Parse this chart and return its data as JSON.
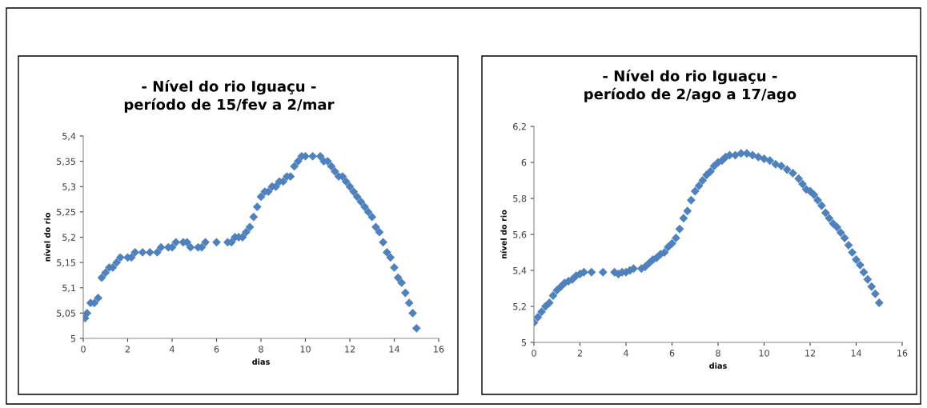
{
  "chart_data": [
    {
      "type": "scatter",
      "title": "- Nível do rio Iguaçu -\nperíodo de 15/fev a 2/mar",
      "xlabel": "dias",
      "ylabel": "nível do rio",
      "marker": "diamond",
      "grid": false,
      "legend": false,
      "xlim": [
        0,
        16
      ],
      "xticks": [
        0,
        2,
        4,
        6,
        8,
        10,
        12,
        14,
        16
      ],
      "ylim": [
        5,
        5.4
      ],
      "yticks": [
        {
          "value": 5,
          "label": "5"
        },
        {
          "value": 5.05,
          "label": "5,05"
        },
        {
          "value": 5.1,
          "label": "5,1"
        },
        {
          "value": 5.15,
          "label": "5,15"
        },
        {
          "value": 5.2,
          "label": "5,2"
        },
        {
          "value": 5.25,
          "label": "5,25"
        },
        {
          "value": 5.3,
          "label": "5,3"
        },
        {
          "value": 5.35,
          "label": "5,35"
        },
        {
          "value": 5.4,
          "label": "5,4"
        }
      ],
      "series": [
        {
          "color": "#4f81bd",
          "x": [
            0,
            0.08,
            0.17,
            0.33,
            0.5,
            0.67,
            0.83,
            1.0,
            1.17,
            1.33,
            1.5,
            1.67,
            2.0,
            2.17,
            2.33,
            2.67,
            3.0,
            3.33,
            3.5,
            3.83,
            4.0,
            4.17,
            4.5,
            4.67,
            4.83,
            5.17,
            5.33,
            5.5,
            6.0,
            6.5,
            6.67,
            6.83,
            7.0,
            7.17,
            7.33,
            7.5,
            7.67,
            7.83,
            8.0,
            8.17,
            8.33,
            8.5,
            8.67,
            8.83,
            9.0,
            9.17,
            9.33,
            9.5,
            9.67,
            9.83,
            10.0,
            10.33,
            10.67,
            10.83,
            11.0,
            11.17,
            11.33,
            11.5,
            11.67,
            11.83,
            12.0,
            12.17,
            12.33,
            12.5,
            12.67,
            12.83,
            13.0,
            13.17,
            13.33,
            13.5,
            13.67,
            13.83,
            14.0,
            14.17,
            14.33,
            14.5,
            14.67,
            14.83,
            15.0
          ],
          "values": [
            5.04,
            5.04,
            5.05,
            5.07,
            5.07,
            5.08,
            5.12,
            5.13,
            5.14,
            5.14,
            5.15,
            5.16,
            5.16,
            5.16,
            5.17,
            5.17,
            5.17,
            5.17,
            5.18,
            5.18,
            5.18,
            5.19,
            5.19,
            5.19,
            5.18,
            5.18,
            5.18,
            5.19,
            5.19,
            5.19,
            5.19,
            5.2,
            5.2,
            5.2,
            5.21,
            5.22,
            5.24,
            5.26,
            5.28,
            5.29,
            5.29,
            5.3,
            5.3,
            5.31,
            5.31,
            5.32,
            5.32,
            5.34,
            5.35,
            5.36,
            5.36,
            5.36,
            5.36,
            5.35,
            5.35,
            5.34,
            5.33,
            5.32,
            5.32,
            5.31,
            5.3,
            5.29,
            5.28,
            5.27,
            5.26,
            5.25,
            5.24,
            5.22,
            5.21,
            5.19,
            5.17,
            5.16,
            5.14,
            5.12,
            5.11,
            5.09,
            5.07,
            5.05,
            5.02
          ]
        }
      ]
    },
    {
      "type": "scatter",
      "title": "- Nível do rio Iguaçu -\nperíodo de 2/ago a 17/ago",
      "xlabel": "dias",
      "ylabel": "nível do rio",
      "marker": "diamond",
      "grid": false,
      "legend": false,
      "xlim": [
        0,
        16
      ],
      "xticks": [
        0,
        2,
        4,
        6,
        8,
        10,
        12,
        14,
        16
      ],
      "ylim": [
        5,
        6.2
      ],
      "yticks": [
        {
          "value": 5,
          "label": "5"
        },
        {
          "value": 5.2,
          "label": "5,2"
        },
        {
          "value": 5.4,
          "label": "5,4"
        },
        {
          "value": 5.6,
          "label": "5,6"
        },
        {
          "value": 5.8,
          "label": "5,8"
        },
        {
          "value": 6,
          "label": "6"
        },
        {
          "value": 6.2,
          "label": "6,2"
        }
      ],
      "series": [
        {
          "color": "#4f81bd",
          "x": [
            0,
            0.17,
            0.33,
            0.5,
            0.67,
            0.83,
            1.0,
            1.17,
            1.33,
            1.5,
            1.67,
            1.83,
            2.0,
            2.17,
            2.5,
            3.0,
            3.5,
            3.67,
            3.83,
            4.0,
            4.17,
            4.33,
            4.67,
            4.83,
            5.0,
            5.17,
            5.33,
            5.5,
            5.67,
            5.83,
            6.0,
            6.17,
            6.33,
            6.5,
            6.67,
            6.83,
            7.0,
            7.17,
            7.33,
            7.5,
            7.67,
            7.83,
            8.0,
            8.17,
            8.33,
            8.5,
            8.75,
            9.0,
            9.25,
            9.5,
            9.75,
            10.0,
            10.25,
            10.5,
            10.75,
            11.0,
            11.25,
            11.5,
            11.67,
            11.83,
            12.0,
            12.17,
            12.33,
            12.5,
            12.67,
            12.83,
            13.0,
            13.17,
            13.33,
            13.5,
            13.67,
            13.83,
            14.0,
            14.17,
            14.33,
            14.5,
            14.67,
            14.83,
            15.0
          ],
          "values": [
            5.11,
            5.14,
            5.17,
            5.2,
            5.22,
            5.26,
            5.29,
            5.31,
            5.33,
            5.34,
            5.35,
            5.37,
            5.38,
            5.39,
            5.39,
            5.39,
            5.39,
            5.38,
            5.39,
            5.39,
            5.4,
            5.41,
            5.41,
            5.42,
            5.44,
            5.46,
            5.47,
            5.49,
            5.5,
            5.53,
            5.55,
            5.58,
            5.63,
            5.69,
            5.73,
            5.79,
            5.84,
            5.87,
            5.9,
            5.93,
            5.95,
            5.98,
            6.0,
            6.01,
            6.03,
            6.04,
            6.04,
            6.05,
            6.05,
            6.04,
            6.03,
            6.02,
            6.01,
            5.99,
            5.98,
            5.96,
            5.94,
            5.91,
            5.88,
            5.85,
            5.84,
            5.82,
            5.79,
            5.76,
            5.72,
            5.69,
            5.66,
            5.64,
            5.61,
            5.58,
            5.54,
            5.5,
            5.46,
            5.43,
            5.39,
            5.35,
            5.31,
            5.27,
            5.22
          ]
        }
      ]
    }
  ]
}
